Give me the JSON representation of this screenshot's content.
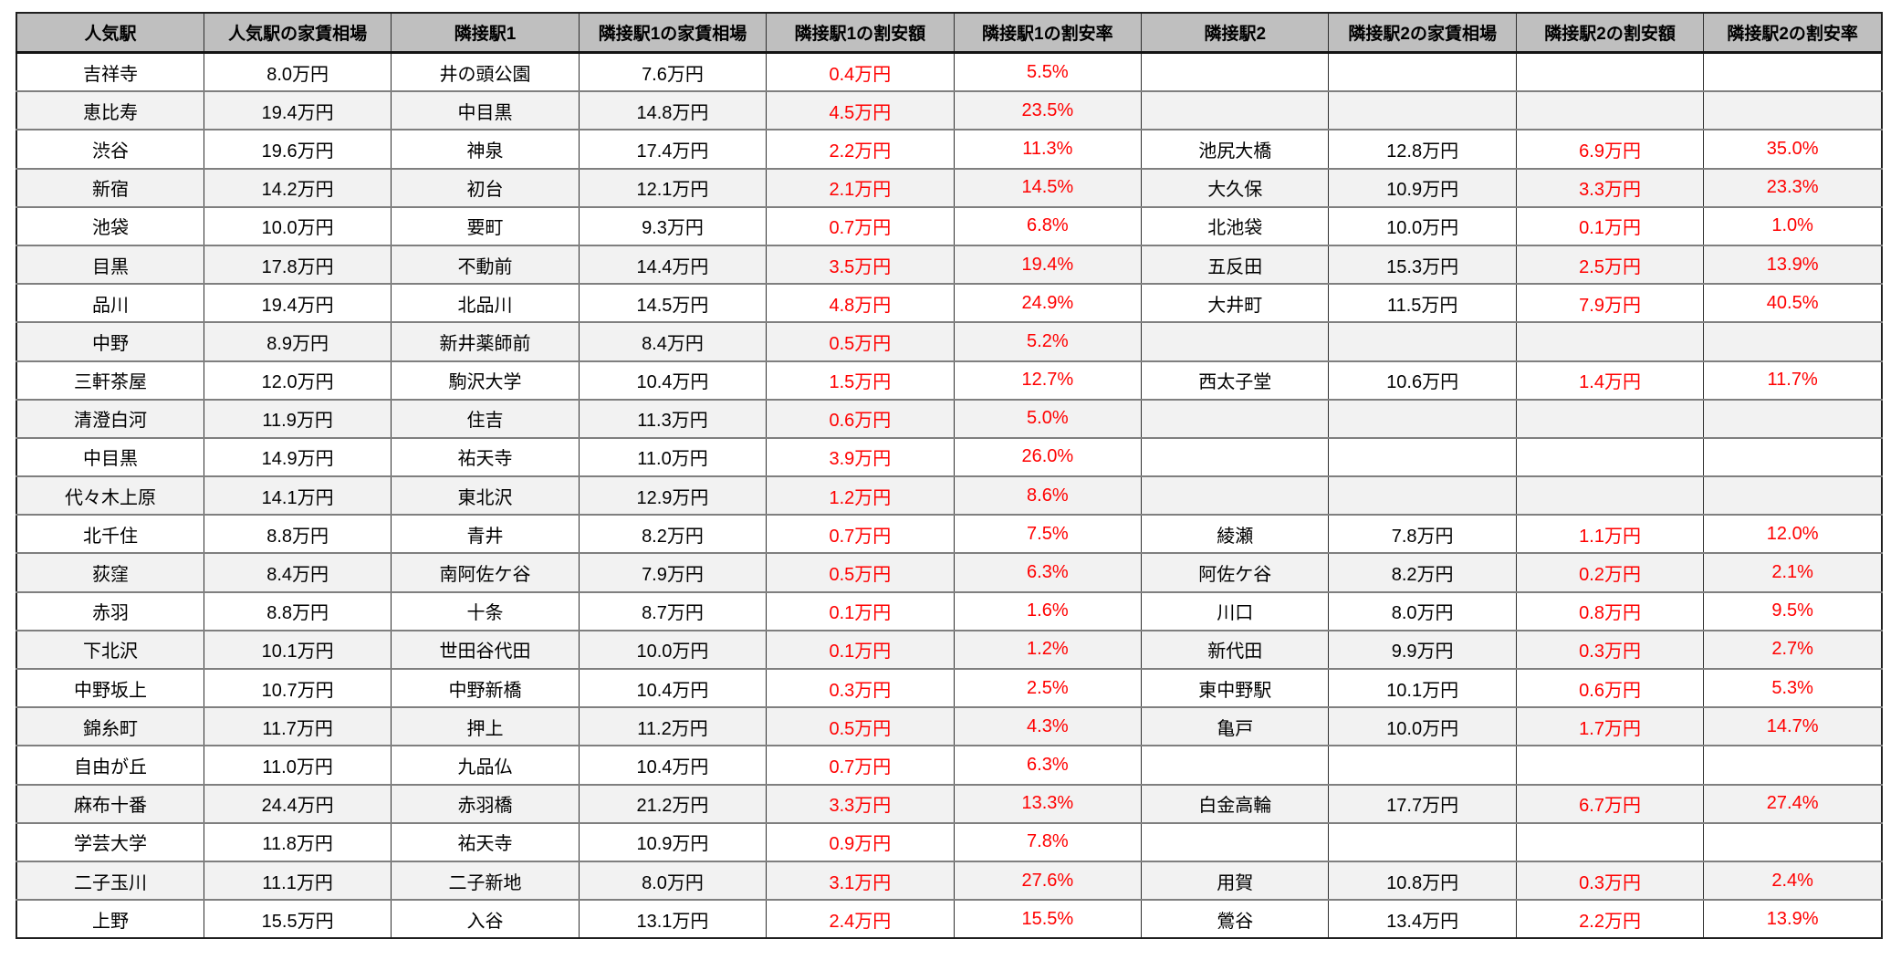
{
  "colors": {
    "header_bg": "#bfbfbf",
    "stripe_bg": "#f2f2f2",
    "highlight_text": "#ff0000",
    "outer_border": "#1f1f1f",
    "row_border": "#7f7f7f",
    "column_border": "#2e2e2e"
  },
  "chart_data": {
    "type": "table",
    "columns": [
      "人気駅",
      "人気駅の家賃相場",
      "隣接駅1",
      "隣接駅1の家賃相場",
      "隣接駅1の割安額",
      "隣接駅1の割安率",
      "隣接駅2",
      "隣接駅2の家賃相場",
      "隣接駅2の割安額",
      "隣接駅2の割安率"
    ],
    "red_columns": [
      4,
      5,
      8,
      9
    ],
    "rows": [
      [
        "吉祥寺",
        "8.0万円",
        "井の頭公園",
        "7.6万円",
        "0.4万円",
        "5.5%",
        "",
        "",
        "",
        ""
      ],
      [
        "恵比寿",
        "19.4万円",
        "中目黒",
        "14.8万円",
        "4.5万円",
        "23.5%",
        "",
        "",
        "",
        ""
      ],
      [
        "渋谷",
        "19.6万円",
        "神泉",
        "17.4万円",
        "2.2万円",
        "11.3%",
        "池尻大橋",
        "12.8万円",
        "6.9万円",
        "35.0%"
      ],
      [
        "新宿",
        "14.2万円",
        "初台",
        "12.1万円",
        "2.1万円",
        "14.5%",
        "大久保",
        "10.9万円",
        "3.3万円",
        "23.3%"
      ],
      [
        "池袋",
        "10.0万円",
        "要町",
        "9.3万円",
        "0.7万円",
        "6.8%",
        "北池袋",
        "10.0万円",
        "0.1万円",
        "1.0%"
      ],
      [
        "目黒",
        "17.8万円",
        "不動前",
        "14.4万円",
        "3.5万円",
        "19.4%",
        "五反田",
        "15.3万円",
        "2.5万円",
        "13.9%"
      ],
      [
        "品川",
        "19.4万円",
        "北品川",
        "14.5万円",
        "4.8万円",
        "24.9%",
        "大井町",
        "11.5万円",
        "7.9万円",
        "40.5%"
      ],
      [
        "中野",
        "8.9万円",
        "新井薬師前",
        "8.4万円",
        "0.5万円",
        "5.2%",
        "",
        "",
        "",
        ""
      ],
      [
        "三軒茶屋",
        "12.0万円",
        "駒沢大学",
        "10.4万円",
        "1.5万円",
        "12.7%",
        "西太子堂",
        "10.6万円",
        "1.4万円",
        "11.7%"
      ],
      [
        "清澄白河",
        "11.9万円",
        "住吉",
        "11.3万円",
        "0.6万円",
        "5.0%",
        "",
        "",
        "",
        ""
      ],
      [
        "中目黒",
        "14.9万円",
        "祐天寺",
        "11.0万円",
        "3.9万円",
        "26.0%",
        "",
        "",
        "",
        ""
      ],
      [
        "代々木上原",
        "14.1万円",
        "東北沢",
        "12.9万円",
        "1.2万円",
        "8.6%",
        "",
        "",
        "",
        ""
      ],
      [
        "北千住",
        "8.8万円",
        "青井",
        "8.2万円",
        "0.7万円",
        "7.5%",
        "綾瀬",
        "7.8万円",
        "1.1万円",
        "12.0%"
      ],
      [
        "荻窪",
        "8.4万円",
        "南阿佐ケ谷",
        "7.9万円",
        "0.5万円",
        "6.3%",
        "阿佐ケ谷",
        "8.2万円",
        "0.2万円",
        "2.1%"
      ],
      [
        "赤羽",
        "8.8万円",
        "十条",
        "8.7万円",
        "0.1万円",
        "1.6%",
        "川口",
        "8.0万円",
        "0.8万円",
        "9.5%"
      ],
      [
        "下北沢",
        "10.1万円",
        "世田谷代田",
        "10.0万円",
        "0.1万円",
        "1.2%",
        "新代田",
        "9.9万円",
        "0.3万円",
        "2.7%"
      ],
      [
        "中野坂上",
        "10.7万円",
        "中野新橋",
        "10.4万円",
        "0.3万円",
        "2.5%",
        "東中野駅",
        "10.1万円",
        "0.6万円",
        "5.3%"
      ],
      [
        "錦糸町",
        "11.7万円",
        "押上",
        "11.2万円",
        "0.5万円",
        "4.3%",
        "亀戸",
        "10.0万円",
        "1.7万円",
        "14.7%"
      ],
      [
        "自由が丘",
        "11.0万円",
        "九品仏",
        "10.4万円",
        "0.7万円",
        "6.3%",
        "",
        "",
        "",
        ""
      ],
      [
        "麻布十番",
        "24.4万円",
        "赤羽橋",
        "21.2万円",
        "3.3万円",
        "13.3%",
        "白金高輪",
        "17.7万円",
        "6.7万円",
        "27.4%"
      ],
      [
        "学芸大学",
        "11.8万円",
        "祐天寺",
        "10.9万円",
        "0.9万円",
        "7.8%",
        "",
        "",
        "",
        ""
      ],
      [
        "二子玉川",
        "11.1万円",
        "二子新地",
        "8.0万円",
        "3.1万円",
        "27.6%",
        "用賀",
        "10.8万円",
        "0.3万円",
        "2.4%"
      ],
      [
        "上野",
        "15.5万円",
        "入谷",
        "13.1万円",
        "2.4万円",
        "15.5%",
        "鶯谷",
        "13.4万円",
        "2.2万円",
        "13.9%"
      ]
    ]
  }
}
